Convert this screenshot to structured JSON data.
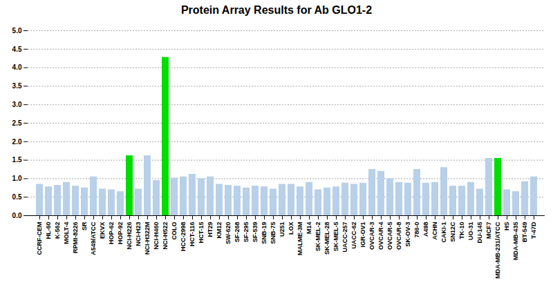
{
  "chart_data": {
    "type": "bar",
    "title": "Protein Array Results for Ab GLO1-2",
    "categories": [
      "CCRF-CEM",
      "HL-60",
      "K-562",
      "MOLT-4",
      "RPMI-8226",
      "SR",
      "A549/ATCC",
      "EKVX",
      "HOP-62",
      "HOP-92",
      "NCI-H226",
      "NCI-H23",
      "NCI-H322M",
      "NCI-H460",
      "NCI-H522",
      "COLO",
      "HCC-2998",
      "HCT-116",
      "HCT-15",
      "HT29",
      "KM12",
      "SW-620",
      "SF-268",
      "SF-295",
      "SF-539",
      "SNB-19",
      "SNB-75",
      "U251",
      "LOX",
      "MALME-3M",
      "M14",
      "SK-MEL-2",
      "SK-MEL-28",
      "SK-MEL-5",
      "UACC-257",
      "UACC-62",
      "IGR-OV1",
      "OVCAR-3",
      "OVCAR-4",
      "OVCAR-5",
      "OVCAR-8",
      "SK-OV-3",
      "786-0",
      "A498",
      "ACHN",
      "CAKI-1",
      "SN12C",
      "TK-10",
      "UO-31",
      "DU-145",
      "MCF7",
      "MDA-MB-231/ATCC",
      "HS",
      "MDA-MB-435",
      "BT-549",
      "T-47D"
    ],
    "values": [
      0.85,
      0.78,
      0.82,
      0.9,
      0.8,
      0.75,
      1.05,
      0.72,
      0.7,
      0.65,
      1.62,
      0.72,
      1.62,
      0.95,
      4.28,
      1.02,
      1.05,
      1.12,
      1.0,
      1.05,
      0.85,
      0.82,
      0.8,
      0.75,
      0.8,
      0.78,
      0.72,
      0.85,
      0.85,
      0.78,
      0.9,
      0.7,
      0.75,
      0.78,
      0.88,
      0.85,
      0.88,
      1.25,
      1.2,
      1.0,
      0.9,
      0.88,
      1.25,
      0.88,
      0.9,
      1.3,
      0.8,
      0.8,
      0.9,
      0.72,
      1.55,
      1.55,
      0.7,
      0.65,
      0.92,
      1.05
    ],
    "colors": [
      "#b8d0e8",
      "#b8d0e8",
      "#b8d0e8",
      "#b8d0e8",
      "#b8d0e8",
      "#b8d0e8",
      "#b8d0e8",
      "#b8d0e8",
      "#b8d0e8",
      "#b8d0e8",
      "#00dd00",
      "#b8d0e8",
      "#b8d0e8",
      "#b8d0e8",
      "#00dd00",
      "#b8d0e8",
      "#b8d0e8",
      "#b8d0e8",
      "#b8d0e8",
      "#b8d0e8",
      "#b8d0e8",
      "#b8d0e8",
      "#b8d0e8",
      "#b8d0e8",
      "#b8d0e8",
      "#b8d0e8",
      "#b8d0e8",
      "#b8d0e8",
      "#b8d0e8",
      "#b8d0e8",
      "#b8d0e8",
      "#b8d0e8",
      "#b8d0e8",
      "#b8d0e8",
      "#b8d0e8",
      "#b8d0e8",
      "#b8d0e8",
      "#b8d0e8",
      "#b8d0e8",
      "#b8d0e8",
      "#b8d0e8",
      "#b8d0e8",
      "#b8d0e8",
      "#b8d0e8",
      "#b8d0e8",
      "#b8d0e8",
      "#b8d0e8",
      "#b8d0e8",
      "#b8d0e8",
      "#b8d0e8",
      "#b8d0e8",
      "#00dd00",
      "#b8d0e8",
      "#b8d0e8",
      "#b8d0e8",
      "#b8d0e8"
    ],
    "ylim": [
      0.0,
      5.0
    ],
    "yticks": [
      {
        "value": 0.0,
        "label": "0.0"
      },
      0.5,
      {
        "value": 1.0,
        "label": "1.0"
      },
      1.5,
      {
        "value": 2.0,
        "label": "2.0"
      },
      2.5,
      {
        "value": 3.0,
        "label": "3.0"
      },
      3.5,
      {
        "value": 4.0,
        "label": "4.0"
      },
      4.5,
      {
        "value": 5.0,
        "label": "5.0"
      }
    ],
    "grid": true
  }
}
